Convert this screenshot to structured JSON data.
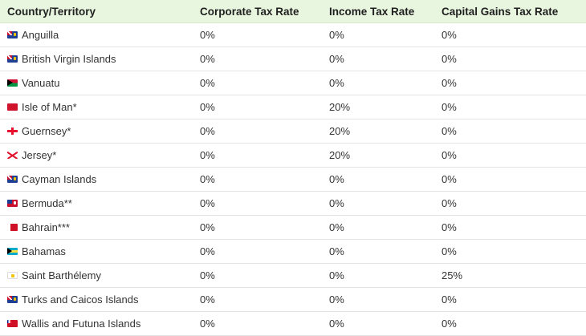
{
  "table": {
    "headers": [
      "Country/Territory",
      "Corporate Tax Rate",
      "Income Tax Rate",
      "Capital Gains Tax Rate"
    ],
    "rows": [
      {
        "flag": "anguilla-flag-icon",
        "flag_style": "f-blue-ensign",
        "name": "Anguilla",
        "corporate": "0%",
        "income": "0%",
        "capital_gains": "0%"
      },
      {
        "flag": "british-virgin-islands-flag-icon",
        "flag_style": "f-blue-ensign",
        "name": "British Virgin Islands",
        "corporate": "0%",
        "income": "0%",
        "capital_gains": "0%"
      },
      {
        "flag": "vanuatu-flag-icon",
        "flag_style": "f-vanuatu",
        "name": "Vanuatu",
        "corporate": "0%",
        "income": "0%",
        "capital_gains": "0%"
      },
      {
        "flag": "isle-of-man-flag-icon",
        "flag_style": "f-iom",
        "name": "Isle of Man*",
        "corporate": "0%",
        "income": "20%",
        "capital_gains": "0%"
      },
      {
        "flag": "guernsey-flag-icon",
        "flag_style": "f-guernsey",
        "name": "Guernsey*",
        "corporate": "0%",
        "income": "20%",
        "capital_gains": "0%"
      },
      {
        "flag": "jersey-flag-icon",
        "flag_style": "f-jersey",
        "name": "Jersey*",
        "corporate": "0%",
        "income": "20%",
        "capital_gains": "0%"
      },
      {
        "flag": "cayman-islands-flag-icon",
        "flag_style": "f-blue-ensign",
        "name": "Cayman Islands",
        "corporate": "0%",
        "income": "0%",
        "capital_gains": "0%"
      },
      {
        "flag": "bermuda-flag-icon",
        "flag_style": "f-red-ensign",
        "name": "Bermuda**",
        "corporate": "0%",
        "income": "0%",
        "capital_gains": "0%"
      },
      {
        "flag": "bahrain-flag-icon",
        "flag_style": "f-bahrain",
        "name": "Bahrain***",
        "corporate": "0%",
        "income": "0%",
        "capital_gains": "0%"
      },
      {
        "flag": "bahamas-flag-icon",
        "flag_style": "f-bahamas",
        "name": "Bahamas",
        "corporate": "0%",
        "income": "0%",
        "capital_gains": "0%"
      },
      {
        "flag": "saint-barthelemy-flag-icon",
        "flag_style": "f-stb",
        "name": "Saint Barthélemy",
        "corporate": "0%",
        "income": "0%",
        "capital_gains": "25%"
      },
      {
        "flag": "turks-and-caicos-flag-icon",
        "flag_style": "f-blue-ensign",
        "name": "Turks and Caicos Islands",
        "corporate": "0%",
        "income": "0%",
        "capital_gains": "0%"
      },
      {
        "flag": "wallis-and-futuna-flag-icon",
        "flag_style": "f-wallis",
        "name": "Wallis and Futuna Islands",
        "corporate": "0%",
        "income": "0%",
        "capital_gains": "0%"
      }
    ]
  },
  "colors": {
    "header_background": "#e9f6df",
    "row_divider": "#e4e4e4",
    "text": "#333333"
  }
}
